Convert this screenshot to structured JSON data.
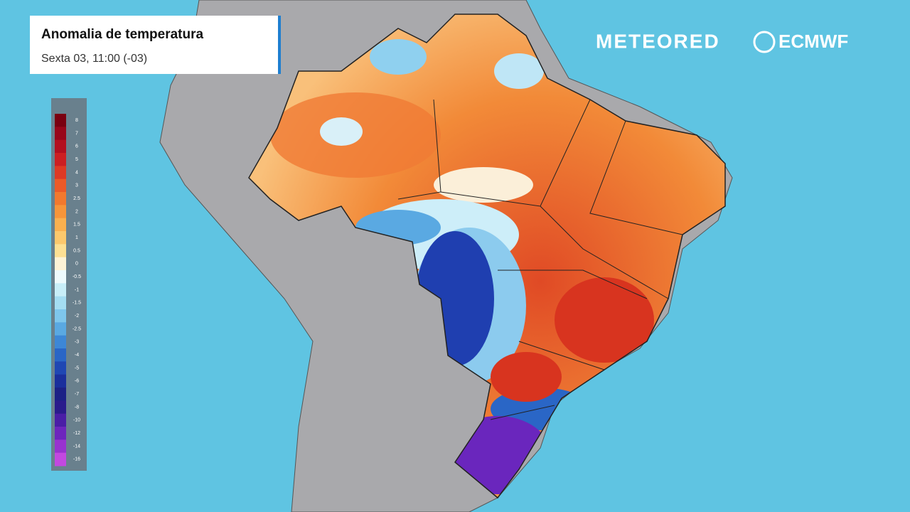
{
  "header": {
    "title": "Anomalia de temperatura",
    "subtitle": "Sexta 03, 11:00 (-03)"
  },
  "logos": {
    "meteored": "METEORED",
    "ecmwf": "ECMWF"
  },
  "legend": {
    "labels": [
      {
        "value": 8,
        "color": "#7a0010"
      },
      {
        "value": 7,
        "color": "#98061a"
      },
      {
        "value": 6,
        "color": "#b30f1f"
      },
      {
        "value": 5,
        "color": "#cc1f22"
      },
      {
        "value": 4,
        "color": "#de3a24"
      },
      {
        "value": 3,
        "color": "#ec5a28"
      },
      {
        "value": 2.5,
        "color": "#f3792e"
      },
      {
        "value": 2,
        "color": "#f7953a"
      },
      {
        "value": 1.5,
        "color": "#fab04f"
      },
      {
        "value": 1,
        "color": "#fcc86c"
      },
      {
        "value": 0.5,
        "color": "#fde093"
      },
      {
        "value": 0,
        "color": "#fdf3d6"
      },
      {
        "value": -0.5,
        "color": "#eefafc"
      },
      {
        "value": -1,
        "color": "#c8eef8"
      },
      {
        "value": -1.5,
        "color": "#a4ddf2"
      },
      {
        "value": -2,
        "color": "#7ec6ec"
      },
      {
        "value": -2.5,
        "color": "#5aa9e2"
      },
      {
        "value": -3,
        "color": "#3d87d6"
      },
      {
        "value": -4,
        "color": "#2a66c6"
      },
      {
        "value": -5,
        "color": "#1f47b3"
      },
      {
        "value": -6,
        "color": "#1a2f9c"
      },
      {
        "value": -7,
        "color": "#1c2186"
      },
      {
        "value": -8,
        "color": "#2a1b8c"
      },
      {
        "value": -10,
        "color": "#4a1ea6"
      },
      {
        "value": -12,
        "color": "#6d26bd"
      },
      {
        "value": -14,
        "color": "#9832cf"
      },
      {
        "value": -16,
        "color": "#c248e0"
      }
    ]
  }
}
